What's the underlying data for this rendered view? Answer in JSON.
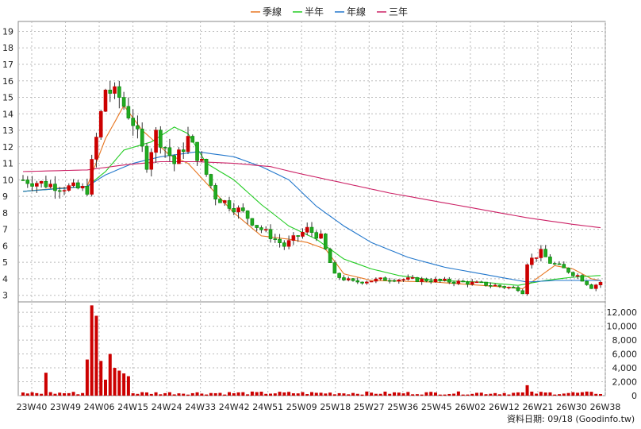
{
  "chart_data": {
    "type": "candlestick",
    "legend": [
      {
        "name": "季線",
        "color": "#e87722"
      },
      {
        "name": "半年",
        "color": "#22cc22"
      },
      {
        "name": "年線",
        "color": "#2277cc"
      },
      {
        "name": "三年",
        "color": "#cc2266"
      }
    ],
    "legend_position": "top-center",
    "grid": true,
    "price_axis": {
      "ylim": [
        2.6,
        19.6
      ],
      "ticks": [
        3,
        4,
        5,
        6,
        7,
        8,
        9,
        10,
        11,
        12,
        13,
        14,
        15,
        16,
        17,
        18,
        19
      ]
    },
    "volume_axis": {
      "ylim": [
        0,
        13500
      ],
      "ticks": [
        0,
        2000,
        4000,
        6000,
        8000,
        10000,
        12000
      ],
      "tick_labels": [
        "0",
        "2,000",
        "4,000",
        "6,000",
        "8,000",
        "10,000",
        "12,000"
      ]
    },
    "x_tick_labels": [
      "23W40",
      "23W49",
      "24W06",
      "24W15",
      "24W24",
      "24W33",
      "24W42",
      "24W51",
      "25W09",
      "25W18",
      "25W27",
      "25W36",
      "25W45",
      "26W02",
      "26W12",
      "26W21",
      "26W30",
      "26W38"
    ],
    "source_text": "資料日期: 09/18 (Goodinfo.tw)",
    "key_points": [
      {
        "week": 0,
        "price": 10.0
      },
      {
        "week": 8,
        "price": 9.6
      },
      {
        "week": 14,
        "price": 9.4
      },
      {
        "week": 16,
        "price": 12.5
      },
      {
        "week": 18,
        "price": 15.5
      },
      {
        "week": 21,
        "price": 15.0
      },
      {
        "week": 24,
        "price": 13.5
      },
      {
        "week": 27,
        "price": 11.0
      },
      {
        "week": 29,
        "price": 12.8
      },
      {
        "week": 31,
        "price": 12.0
      },
      {
        "week": 33,
        "price": 11.0
      },
      {
        "week": 36,
        "price": 12.5
      },
      {
        "week": 39,
        "price": 11.0
      },
      {
        "week": 42,
        "price": 9.0
      },
      {
        "week": 48,
        "price": 8.0
      },
      {
        "week": 51,
        "price": 7.2
      },
      {
        "week": 57,
        "price": 6.0
      },
      {
        "week": 62,
        "price": 7.0
      },
      {
        "week": 65,
        "price": 6.5
      },
      {
        "week": 68,
        "price": 4.2
      },
      {
        "week": 72,
        "price": 3.8
      },
      {
        "week": 80,
        "price": 4.0
      },
      {
        "week": 90,
        "price": 3.9
      },
      {
        "week": 100,
        "price": 3.7
      },
      {
        "week": 108,
        "price": 3.4
      },
      {
        "week": 109,
        "price": 3.2
      },
      {
        "week": 110,
        "price": 5.0
      },
      {
        "week": 113,
        "price": 5.6
      },
      {
        "week": 115,
        "price": 5.0
      },
      {
        "week": 118,
        "price": 4.6
      },
      {
        "week": 121,
        "price": 4.2
      },
      {
        "week": 124,
        "price": 3.5
      },
      {
        "week": 126,
        "price": 3.8
      }
    ],
    "volume_spikes": [
      {
        "week": 5,
        "value": 3300
      },
      {
        "week": 14,
        "value": 5200
      },
      {
        "week": 15,
        "value": 13000
      },
      {
        "week": 16,
        "value": 11500
      },
      {
        "week": 17,
        "value": 5000
      },
      {
        "week": 18,
        "value": 2300
      },
      {
        "week": 19,
        "value": 6000
      },
      {
        "week": 20,
        "value": 4000
      },
      {
        "week": 21,
        "value": 3600
      },
      {
        "week": 22,
        "value": 3200
      },
      {
        "week": 23,
        "value": 2800
      },
      {
        "week": 110,
        "value": 1500
      }
    ],
    "moving_averages": {
      "季線": [
        [
          0,
          9.3
        ],
        [
          8,
          9.5
        ],
        [
          14,
          9.6
        ],
        [
          18,
          12.5
        ],
        [
          22,
          14.5
        ],
        [
          26,
          13.0
        ],
        [
          32,
          11.5
        ],
        [
          36,
          11.0
        ],
        [
          40,
          9.8
        ],
        [
          46,
          8.0
        ],
        [
          52,
          6.6
        ],
        [
          58,
          6.4
        ],
        [
          62,
          6.2
        ],
        [
          66,
          5.8
        ],
        [
          70,
          4.3
        ],
        [
          76,
          3.9
        ],
        [
          90,
          3.8
        ],
        [
          105,
          3.5
        ],
        [
          109,
          3.4
        ],
        [
          112,
          4.0
        ],
        [
          116,
          4.8
        ],
        [
          120,
          4.6
        ],
        [
          124,
          4.0
        ],
        [
          126,
          3.9
        ]
      ],
      "半年": [
        [
          0,
          9.3
        ],
        [
          14,
          9.6
        ],
        [
          18,
          10.5
        ],
        [
          22,
          11.8
        ],
        [
          28,
          12.3
        ],
        [
          33,
          13.2
        ],
        [
          36,
          12.8
        ],
        [
          40,
          11.0
        ],
        [
          46,
          10.0
        ],
        [
          52,
          8.5
        ],
        [
          58,
          7.2
        ],
        [
          64,
          6.4
        ],
        [
          70,
          5.2
        ],
        [
          76,
          4.6
        ],
        [
          82,
          4.2
        ],
        [
          90,
          3.9
        ],
        [
          100,
          3.8
        ],
        [
          108,
          3.6
        ],
        [
          114,
          3.9
        ],
        [
          120,
          4.1
        ],
        [
          126,
          4.2
        ]
      ],
      "年線": [
        [
          0,
          9.3
        ],
        [
          14,
          9.6
        ],
        [
          18,
          10.3
        ],
        [
          24,
          11.0
        ],
        [
          30,
          11.4
        ],
        [
          38,
          11.7
        ],
        [
          46,
          11.4
        ],
        [
          52,
          10.8
        ],
        [
          58,
          10.0
        ],
        [
          64,
          8.4
        ],
        [
          70,
          7.2
        ],
        [
          76,
          6.2
        ],
        [
          84,
          5.3
        ],
        [
          92,
          4.7
        ],
        [
          100,
          4.3
        ],
        [
          106,
          4.0
        ],
        [
          110,
          3.8
        ],
        [
          116,
          3.9
        ],
        [
          122,
          3.9
        ],
        [
          126,
          3.9
        ]
      ],
      "三年": [
        [
          0,
          10.5
        ],
        [
          14,
          10.6
        ],
        [
          22,
          10.9
        ],
        [
          30,
          11.1
        ],
        [
          38,
          11.1
        ],
        [
          46,
          11.0
        ],
        [
          54,
          10.8
        ],
        [
          60,
          10.4
        ],
        [
          70,
          9.8
        ],
        [
          80,
          9.2
        ],
        [
          90,
          8.7
        ],
        [
          100,
          8.2
        ],
        [
          110,
          7.7
        ],
        [
          120,
          7.3
        ],
        [
          126,
          7.1
        ]
      ]
    }
  }
}
